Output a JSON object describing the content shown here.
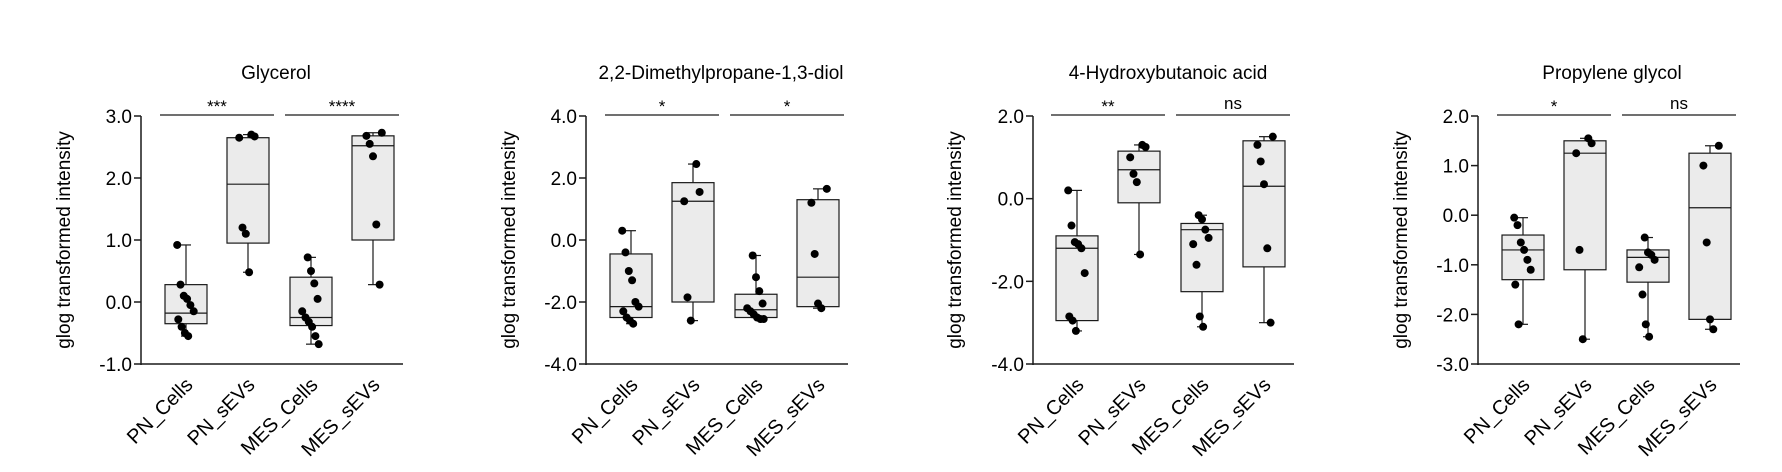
{
  "chart_data": [
    {
      "type": "box",
      "title": "Glycerol",
      "ylabel": "glog transformed intensity",
      "ylim": [
        -1.0,
        3.0
      ],
      "yticks": [
        "3.0",
        "2.0",
        "1.0",
        "0.0",
        "-1.0"
      ],
      "tick_values": [
        3.0,
        2.0,
        1.0,
        0.0,
        -1.0
      ],
      "categories": [
        "PN_Cells",
        "PN_sEVs",
        "MES_Cells",
        "MES_sEVs"
      ],
      "boxes": [
        {
          "min": -0.55,
          "q1": -0.35,
          "median": -0.18,
          "q3": 0.28,
          "max": 0.92
        },
        {
          "min": 0.48,
          "q1": 0.95,
          "median": 1.9,
          "q3": 2.65,
          "max": 2.7
        },
        {
          "min": -0.68,
          "q1": -0.38,
          "median": -0.25,
          "q3": 0.4,
          "max": 0.72
        },
        {
          "min": 0.28,
          "q1": 1.0,
          "median": 2.52,
          "q3": 2.68,
          "max": 2.73
        }
      ],
      "points": [
        [
          0.92,
          0.28,
          0.1,
          0.05,
          -0.05,
          -0.15,
          -0.28,
          -0.4,
          -0.5,
          -0.55
        ],
        [
          2.7,
          2.67,
          2.65,
          1.2,
          1.1,
          0.48
        ],
        [
          0.72,
          0.5,
          0.3,
          0.05,
          -0.15,
          -0.25,
          -0.32,
          -0.4,
          -0.55,
          -0.68
        ],
        [
          2.73,
          2.68,
          2.55,
          2.35,
          1.25,
          0.28
        ]
      ],
      "significance": [
        {
          "from": 0,
          "to": 1,
          "label": "***"
        },
        {
          "from": 2,
          "to": 3,
          "label": "****"
        }
      ]
    },
    {
      "type": "box",
      "title": "2,2-Dimethylpropane-1,3-diol",
      "ylabel": "glog transformed intensity",
      "ylim": [
        -4.0,
        4.0
      ],
      "yticks": [
        "4.0",
        "2.0",
        "0.0",
        "-2.0",
        "-4.0"
      ],
      "tick_values": [
        4.0,
        2.0,
        0.0,
        -2.0,
        -4.0
      ],
      "categories": [
        "PN_Cells",
        "PN_sEVs",
        "MES_Cells",
        "MES_sEVs"
      ],
      "boxes": [
        {
          "min": -2.7,
          "q1": -2.5,
          "median": -2.15,
          "q3": -0.45,
          "max": 0.3
        },
        {
          "min": -2.6,
          "q1": -2.0,
          "median": 1.25,
          "q3": 1.85,
          "max": 2.45
        },
        {
          "min": -2.5,
          "q1": -2.5,
          "median": -2.25,
          "q3": -1.75,
          "max": -0.5
        },
        {
          "min": -2.2,
          "q1": -2.15,
          "median": -1.2,
          "q3": 1.3,
          "max": 1.65
        }
      ],
      "points": [
        [
          0.3,
          -0.4,
          -1.0,
          -1.3,
          -2.0,
          -2.15,
          -2.3,
          -2.5,
          -2.6,
          -2.7
        ],
        [
          2.45,
          1.55,
          1.25,
          -1.85,
          -2.6
        ],
        [
          -0.5,
          -1.2,
          -1.65,
          -2.05,
          -2.2,
          -2.3,
          -2.4,
          -2.5,
          -2.55,
          -2.55
        ],
        [
          1.65,
          1.2,
          -0.45,
          -2.05,
          -2.2
        ]
      ],
      "significance": [
        {
          "from": 0,
          "to": 1,
          "label": "*"
        },
        {
          "from": 2,
          "to": 3,
          "label": "*"
        }
      ]
    },
    {
      "type": "box",
      "title": "4-Hydroxybutanoic acid",
      "ylabel": "glog transformed intensity",
      "ylim": [
        -4.0,
        2.0
      ],
      "yticks": [
        "2.0",
        "0.0",
        "-2.0",
        "-4.0"
      ],
      "tick_values": [
        2.0,
        0.0,
        -2.0,
        -4.0
      ],
      "categories": [
        "PN_Cells",
        "PN_sEVs",
        "MES_Cells",
        "MES_sEVs"
      ],
      "boxes": [
        {
          "min": -3.2,
          "q1": -2.95,
          "median": -1.2,
          "q3": -0.9,
          "max": 0.2
        },
        {
          "min": -1.35,
          "q1": -0.1,
          "median": 0.7,
          "q3": 1.15,
          "max": 1.3
        },
        {
          "min": -3.1,
          "q1": -2.25,
          "median": -0.75,
          "q3": -0.6,
          "max": -0.4
        },
        {
          "min": -3.0,
          "q1": -1.65,
          "median": 0.3,
          "q3": 1.4,
          "max": 1.5
        }
      ],
      "points": [
        [
          0.2,
          -0.65,
          -1.05,
          -1.1,
          -1.2,
          -1.8,
          -2.85,
          -2.95,
          -3.2
        ],
        [
          1.3,
          1.25,
          1.0,
          0.6,
          0.4,
          -1.35
        ],
        [
          -0.4,
          -0.5,
          -0.75,
          -0.95,
          -1.1,
          -1.6,
          -2.85,
          -3.1
        ],
        [
          1.5,
          1.3,
          0.9,
          0.35,
          -1.2,
          -3.0
        ]
      ],
      "significance": [
        {
          "from": 0,
          "to": 1,
          "label": "**"
        },
        {
          "from": 2,
          "to": 3,
          "label": "ns"
        }
      ]
    },
    {
      "type": "box",
      "title": "Propylene glycol",
      "ylabel": "glog transformed intensity",
      "ylim": [
        -3.0,
        2.0
      ],
      "yticks": [
        "2.0",
        "1.0",
        "0.0",
        "-1.0",
        "-2.0",
        "-3.0"
      ],
      "tick_values": [
        2.0,
        1.0,
        0.0,
        -1.0,
        -2.0,
        -3.0
      ],
      "categories": [
        "PN_Cells",
        "PN_sEVs",
        "MES_Cells",
        "MES_sEVs"
      ],
      "boxes": [
        {
          "min": -2.2,
          "q1": -1.3,
          "median": -0.7,
          "q3": -0.4,
          "max": -0.05
        },
        {
          "min": -2.5,
          "q1": -1.1,
          "median": 1.25,
          "q3": 1.5,
          "max": 1.55
        },
        {
          "min": -2.45,
          "q1": -1.35,
          "median": -0.85,
          "q3": -0.7,
          "max": -0.45
        },
        {
          "min": -2.3,
          "q1": -2.1,
          "median": 0.15,
          "q3": 1.25,
          "max": 1.4
        }
      ],
      "points": [
        [
          -0.05,
          -0.2,
          -0.55,
          -0.7,
          -0.9,
          -1.1,
          -1.4,
          -2.2
        ],
        [
          1.55,
          1.45,
          1.25,
          -0.7,
          -2.5
        ],
        [
          -0.45,
          -0.75,
          -0.8,
          -0.9,
          -1.05,
          -1.6,
          -2.2,
          -2.45
        ],
        [
          1.4,
          1.0,
          -0.55,
          -2.1,
          -2.3
        ]
      ],
      "significance": [
        {
          "from": 0,
          "to": 1,
          "label": "*"
        },
        {
          "from": 2,
          "to": 3,
          "label": "ns"
        }
      ]
    }
  ],
  "colors": {
    "box_fill": "#ebebeb",
    "stroke": "#1a1a1a",
    "point": "#000000"
  }
}
